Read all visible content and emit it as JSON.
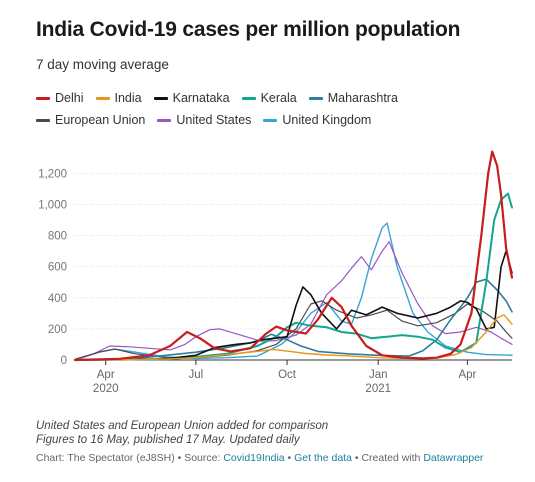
{
  "title": "India Covid-19 cases per million population",
  "subtitle": "7 day moving average",
  "notes": [
    "United States and European Union added for comparison",
    "Figures to 16 May, published 17 May. Updated daily"
  ],
  "credit": {
    "chart": "Chart: The Spectator (eJ8SH)",
    "sep1": " • Source: ",
    "source": "Covid19India",
    "sep2": " • ",
    "getdata": "Get the data",
    "sep3": " • Created with ",
    "tool": "Datawrapper"
  },
  "chart_data": {
    "type": "line",
    "title": "India Covid-19 cases per million population",
    "subtitle": "7 day moving average",
    "xlabel": "",
    "ylabel": "",
    "x_range": [
      "2020-03-01",
      "2021-05-16"
    ],
    "ylim": [
      0,
      1350
    ],
    "y_ticks": [
      0,
      200,
      400,
      600,
      800,
      1000,
      1200
    ],
    "y_tick_labels": [
      "0",
      "200",
      "400",
      "600",
      "800",
      "1,000",
      "1,200"
    ],
    "x_ticks": [
      {
        "date": "2020-04-01",
        "label": "Apr",
        "year": "2020"
      },
      {
        "date": "2020-07-01",
        "label": "Jul",
        "year": ""
      },
      {
        "date": "2020-10-01",
        "label": "Oct",
        "year": ""
      },
      {
        "date": "2021-01-01",
        "label": "Jan",
        "year": "2021"
      },
      {
        "date": "2021-04-01",
        "label": "Apr",
        "year": ""
      }
    ],
    "grid": true,
    "legend_position": "top",
    "series": [
      {
        "name": "Delhi",
        "color": "#c71e1d",
        "width": 2.2,
        "points": [
          [
            "2020-03-01",
            0
          ],
          [
            "2020-04-15",
            8
          ],
          [
            "2020-05-15",
            30
          ],
          [
            "2020-06-05",
            90
          ],
          [
            "2020-06-22",
            180
          ],
          [
            "2020-07-05",
            140
          ],
          [
            "2020-07-20",
            75
          ],
          [
            "2020-08-05",
            55
          ],
          [
            "2020-08-25",
            75
          ],
          [
            "2020-09-10",
            170
          ],
          [
            "2020-09-20",
            215
          ],
          [
            "2020-10-01",
            190
          ],
          [
            "2020-10-20",
            170
          ],
          [
            "2020-11-01",
            260
          ],
          [
            "2020-11-10",
            350
          ],
          [
            "2020-11-15",
            400
          ],
          [
            "2020-11-25",
            340
          ],
          [
            "2020-12-05",
            220
          ],
          [
            "2020-12-20",
            90
          ],
          [
            "2021-01-05",
            30
          ],
          [
            "2021-01-25",
            15
          ],
          [
            "2021-02-15",
            10
          ],
          [
            "2021-03-01",
            15
          ],
          [
            "2021-03-15",
            40
          ],
          [
            "2021-03-25",
            100
          ],
          [
            "2021-04-05",
            300
          ],
          [
            "2021-04-15",
            800
          ],
          [
            "2021-04-22",
            1200
          ],
          [
            "2021-04-26",
            1340
          ],
          [
            "2021-05-01",
            1250
          ],
          [
            "2021-05-05",
            1060
          ],
          [
            "2021-05-10",
            720
          ],
          [
            "2021-05-16",
            530
          ]
        ]
      },
      {
        "name": "India",
        "color": "#e8961a",
        "width": 1.4,
        "points": [
          [
            "2020-03-01",
            0
          ],
          [
            "2020-05-01",
            2
          ],
          [
            "2020-06-01",
            6
          ],
          [
            "2020-07-01",
            15
          ],
          [
            "2020-08-01",
            35
          ],
          [
            "2020-09-01",
            55
          ],
          [
            "2020-09-17",
            68
          ],
          [
            "2020-10-01",
            57
          ],
          [
            "2020-10-20",
            42
          ],
          [
            "2020-11-10",
            32
          ],
          [
            "2020-12-01",
            27
          ],
          [
            "2021-01-01",
            15
          ],
          [
            "2021-02-01",
            10
          ],
          [
            "2021-03-01",
            13
          ],
          [
            "2021-03-20",
            35
          ],
          [
            "2021-04-05",
            80
          ],
          [
            "2021-04-20",
            180
          ],
          [
            "2021-05-01",
            270
          ],
          [
            "2021-05-08",
            290
          ],
          [
            "2021-05-16",
            230
          ]
        ]
      },
      {
        "name": "Karnataka",
        "color": "#111111",
        "width": 1.6,
        "points": [
          [
            "2020-03-01",
            0
          ],
          [
            "2020-05-01",
            2
          ],
          [
            "2020-06-01",
            8
          ],
          [
            "2020-07-01",
            30
          ],
          [
            "2020-07-20",
            80
          ],
          [
            "2020-08-10",
            100
          ],
          [
            "2020-08-25",
            110
          ],
          [
            "2020-09-05",
            130
          ],
          [
            "2020-09-20",
            140
          ],
          [
            "2020-10-01",
            150
          ],
          [
            "2020-10-10",
            350
          ],
          [
            "2020-10-17",
            470
          ],
          [
            "2020-10-25",
            420
          ],
          [
            "2020-11-05",
            300
          ],
          [
            "2020-11-20",
            200
          ],
          [
            "2020-12-05",
            320
          ],
          [
            "2020-12-20",
            290
          ],
          [
            "2021-01-05",
            340
          ],
          [
            "2021-01-20",
            300
          ],
          [
            "2021-02-10",
            270
          ],
          [
            "2021-03-01",
            300
          ],
          [
            "2021-03-15",
            340
          ],
          [
            "2021-03-25",
            380
          ],
          [
            "2021-04-01",
            370
          ],
          [
            "2021-04-10",
            330
          ],
          [
            "2021-04-20",
            200
          ],
          [
            "2021-04-28",
            210
          ],
          [
            "2021-05-05",
            600
          ],
          [
            "2021-05-10",
            700
          ],
          [
            "2021-05-16",
            560
          ]
        ]
      },
      {
        "name": "Kerala",
        "color": "#15a58f",
        "width": 2.0,
        "points": [
          [
            "2020-03-01",
            0
          ],
          [
            "2020-06-01",
            5
          ],
          [
            "2020-07-01",
            20
          ],
          [
            "2020-08-01",
            40
          ],
          [
            "2020-09-01",
            90
          ],
          [
            "2020-09-20",
            150
          ],
          [
            "2020-10-01",
            210
          ],
          [
            "2020-10-10",
            240
          ],
          [
            "2020-10-25",
            220
          ],
          [
            "2020-11-10",
            210
          ],
          [
            "2020-11-25",
            180
          ],
          [
            "2020-12-10",
            170
          ],
          [
            "2020-12-25",
            140
          ],
          [
            "2021-01-10",
            150
          ],
          [
            "2021-01-25",
            160
          ],
          [
            "2021-02-10",
            150
          ],
          [
            "2021-02-25",
            130
          ],
          [
            "2021-03-10",
            80
          ],
          [
            "2021-03-25",
            50
          ],
          [
            "2021-04-10",
            110
          ],
          [
            "2021-04-20",
            500
          ],
          [
            "2021-04-28",
            900
          ],
          [
            "2021-05-05",
            1030
          ],
          [
            "2021-05-12",
            1070
          ],
          [
            "2021-05-16",
            980
          ]
        ]
      },
      {
        "name": "Maharashtra",
        "color": "#2f7d9c",
        "width": 1.6,
        "points": [
          [
            "2020-03-01",
            0
          ],
          [
            "2020-05-01",
            10
          ],
          [
            "2020-06-01",
            30
          ],
          [
            "2020-07-01",
            50
          ],
          [
            "2020-08-01",
            80
          ],
          [
            "2020-09-01",
            120
          ],
          [
            "2020-09-15",
            165
          ],
          [
            "2020-10-01",
            130
          ],
          [
            "2020-10-15",
            90
          ],
          [
            "2020-11-01",
            55
          ],
          [
            "2020-12-01",
            40
          ],
          [
            "2021-01-01",
            30
          ],
          [
            "2021-02-01",
            25
          ],
          [
            "2021-02-15",
            60
          ],
          [
            "2021-03-01",
            130
          ],
          [
            "2021-03-15",
            260
          ],
          [
            "2021-03-25",
            340
          ],
          [
            "2021-04-01",
            400
          ],
          [
            "2021-04-10",
            500
          ],
          [
            "2021-04-20",
            520
          ],
          [
            "2021-05-01",
            450
          ],
          [
            "2021-05-10",
            380
          ],
          [
            "2021-05-16",
            310
          ]
        ]
      },
      {
        "name": "European Union",
        "color": "#4a4a4a",
        "width": 1.2,
        "points": [
          [
            "2020-03-01",
            5
          ],
          [
            "2020-03-25",
            50
          ],
          [
            "2020-04-10",
            70
          ],
          [
            "2020-05-01",
            40
          ],
          [
            "2020-06-01",
            15
          ],
          [
            "2020-07-01",
            15
          ],
          [
            "2020-08-01",
            30
          ],
          [
            "2020-09-01",
            60
          ],
          [
            "2020-09-20",
            100
          ],
          [
            "2020-10-10",
            200
          ],
          [
            "2020-10-25",
            360
          ],
          [
            "2020-11-05",
            380
          ],
          [
            "2020-11-20",
            320
          ],
          [
            "2020-12-10",
            270
          ],
          [
            "2020-12-25",
            290
          ],
          [
            "2021-01-10",
            320
          ],
          [
            "2021-01-25",
            250
          ],
          [
            "2021-02-10",
            220
          ],
          [
            "2021-03-01",
            240
          ],
          [
            "2021-03-20",
            300
          ],
          [
            "2021-04-01",
            360
          ],
          [
            "2021-04-15",
            320
          ],
          [
            "2021-05-01",
            250
          ],
          [
            "2021-05-10",
            180
          ],
          [
            "2021-05-16",
            140
          ]
        ]
      },
      {
        "name": "United States",
        "color": "#9a57c4",
        "width": 1.2,
        "points": [
          [
            "2020-03-01",
            0
          ],
          [
            "2020-03-20",
            40
          ],
          [
            "2020-04-05",
            90
          ],
          [
            "2020-04-25",
            85
          ],
          [
            "2020-05-15",
            75
          ],
          [
            "2020-06-05",
            65
          ],
          [
            "2020-06-20",
            100
          ],
          [
            "2020-07-01",
            150
          ],
          [
            "2020-07-15",
            195
          ],
          [
            "2020-07-25",
            200
          ],
          [
            "2020-08-15",
            160
          ],
          [
            "2020-09-05",
            120
          ],
          [
            "2020-09-20",
            125
          ],
          [
            "2020-10-10",
            160
          ],
          [
            "2020-10-25",
            230
          ],
          [
            "2020-11-10",
            420
          ],
          [
            "2020-11-25",
            510
          ],
          [
            "2020-12-05",
            590
          ],
          [
            "2020-12-15",
            665
          ],
          [
            "2020-12-25",
            580
          ],
          [
            "2021-01-05",
            700
          ],
          [
            "2021-01-12",
            760
          ],
          [
            "2021-01-25",
            560
          ],
          [
            "2021-02-10",
            360
          ],
          [
            "2021-02-25",
            220
          ],
          [
            "2021-03-10",
            170
          ],
          [
            "2021-03-25",
            180
          ],
          [
            "2021-04-10",
            210
          ],
          [
            "2021-04-25",
            180
          ],
          [
            "2021-05-05",
            140
          ],
          [
            "2021-05-16",
            100
          ]
        ]
      },
      {
        "name": "United Kingdom",
        "color": "#37a3d6",
        "width": 1.4,
        "points": [
          [
            "2020-03-01",
            0
          ],
          [
            "2020-03-25",
            50
          ],
          [
            "2020-04-10",
            70
          ],
          [
            "2020-05-01",
            50
          ],
          [
            "2020-06-01",
            20
          ],
          [
            "2020-07-01",
            10
          ],
          [
            "2020-08-01",
            15
          ],
          [
            "2020-09-01",
            25
          ],
          [
            "2020-09-25",
            100
          ],
          [
            "2020-10-10",
            180
          ],
          [
            "2020-10-25",
            300
          ],
          [
            "2020-11-10",
            370
          ],
          [
            "2020-11-25",
            250
          ],
          [
            "2020-12-05",
            230
          ],
          [
            "2020-12-15",
            400
          ],
          [
            "2020-12-25",
            650
          ],
          [
            "2021-01-05",
            850
          ],
          [
            "2021-01-10",
            880
          ],
          [
            "2021-01-20",
            600
          ],
          [
            "2021-02-05",
            300
          ],
          [
            "2021-02-20",
            180
          ],
          [
            "2021-03-10",
            90
          ],
          [
            "2021-04-01",
            50
          ],
          [
            "2021-04-20",
            35
          ],
          [
            "2021-05-16",
            30
          ]
        ]
      }
    ]
  }
}
